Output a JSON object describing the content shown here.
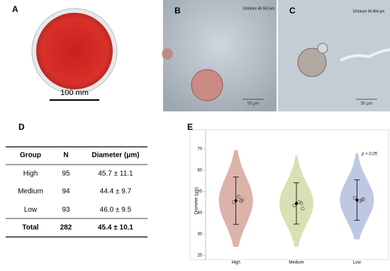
{
  "panels": [
    {
      "label": "A",
      "scale": "100 mm"
    },
    {
      "label": "B",
      "measure": "Distance 46.563 µm",
      "scale": "50 µm"
    },
    {
      "label": "C",
      "measure": "Distance 39.464 µm",
      "scale": "50 µm"
    }
  ],
  "table": {
    "label": "D",
    "header": [
      "Group",
      "N",
      "Diameter (μm)"
    ],
    "rows": [
      [
        "High",
        "95",
        "45.7 ± 11.1"
      ],
      [
        "Medium",
        "94",
        "44.4 ± 9.7"
      ],
      [
        "Low",
        "93",
        "46.0 ± 9.5"
      ],
      [
        "Total",
        "282",
        "45.4 ± 10.1"
      ]
    ]
  },
  "chart_data": {
    "type": "violin",
    "panel_label": "E",
    "annotation": "p > 0.05",
    "y_label": "Diameter (μm)",
    "categories": [
      "High",
      "Medium",
      "Low"
    ],
    "colors": [
      "#cf9a8e",
      "#cdd59a",
      "#aab6d8"
    ],
    "values": [
      45.7,
      44.4,
      46.0
    ],
    "errors": [
      11.1,
      9.7,
      9.5
    ],
    "mins": [
      24,
      24,
      27.5
    ],
    "maxs": [
      69.5,
      67,
      68
    ],
    "points": [
      [
        45,
        47.5,
        45.5,
        46
      ],
      [
        43.5,
        45,
        44.5,
        42
      ],
      [
        47,
        45.5,
        46,
        46.5
      ]
    ],
    "ylim": [
      18,
      79
    ],
    "yticks": [
      20,
      30,
      40,
      50,
      60,
      70
    ]
  }
}
